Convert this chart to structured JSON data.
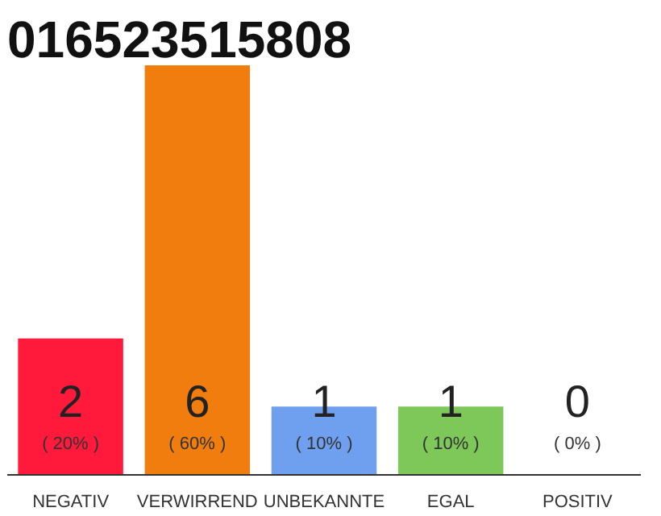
{
  "chart_data": {
    "type": "bar",
    "title": "016523515808",
    "categories": [
      "NEGATIV",
      "VERWIRREND",
      "UNBEKANNTE",
      "EGAL",
      "POSITIV"
    ],
    "values": [
      20,
      60,
      10,
      10,
      0
    ],
    "colors": [
      "#ff1a3c",
      "#f07d0e",
      "#6fa0f0",
      "#7ec85a",
      "#d0d0d0"
    ],
    "value_labels": [
      "( 20% )",
      "( 60% )",
      "( 10% )",
      "( 10% )",
      "( 0% )"
    ],
    "annotations": [
      "2",
      "6",
      "1",
      "1",
      "0"
    ],
    "grid": false
  }
}
